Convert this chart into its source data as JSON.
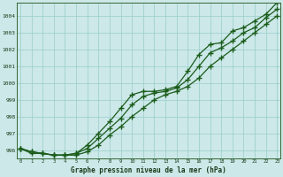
{
  "x": [
    0,
    1,
    2,
    3,
    4,
    5,
    6,
    7,
    8,
    9,
    10,
    11,
    12,
    13,
    14,
    15,
    16,
    17,
    18,
    19,
    20,
    21,
    22,
    23
  ],
  "line1": [
    996.1,
    995.9,
    995.8,
    995.7,
    995.7,
    995.7,
    995.9,
    996.3,
    996.9,
    997.4,
    998.0,
    998.5,
    999.0,
    999.3,
    999.5,
    999.8,
    1000.3,
    1001.0,
    1001.5,
    1002.0,
    1002.5,
    1003.0,
    1003.5,
    1004.0
  ],
  "line2": [
    996.1,
    995.9,
    995.8,
    995.7,
    995.7,
    995.8,
    996.1,
    996.7,
    997.3,
    997.9,
    998.7,
    999.2,
    999.4,
    999.5,
    999.7,
    1000.2,
    1001.0,
    1001.8,
    1002.1,
    1002.5,
    1003.0,
    1003.3,
    1003.9,
    1004.4
  ],
  "line3": [
    996.1,
    995.8,
    995.8,
    995.7,
    995.7,
    995.8,
    996.3,
    997.0,
    997.7,
    998.5,
    999.3,
    999.5,
    999.5,
    999.6,
    999.8,
    1000.7,
    1001.7,
    1002.3,
    1002.4,
    1003.1,
    1003.3,
    1003.7,
    1004.1,
    1004.8
  ],
  "line_color": "#1a5c1a",
  "bg_color": "#cce8e8",
  "grid_color": "#99cccc",
  "xlabel": "Graphe pression niveau de la mer (hPa)",
  "ylim": [
    995.5,
    1004.8
  ],
  "yticks": [
    996,
    997,
    998,
    999,
    1000,
    1001,
    1002,
    1003,
    1004
  ],
  "xticks": [
    0,
    1,
    2,
    3,
    4,
    5,
    6,
    7,
    8,
    9,
    10,
    11,
    12,
    13,
    14,
    15,
    16,
    17,
    18,
    19,
    20,
    21,
    22,
    23
  ],
  "figw": 3.2,
  "figh": 2.0,
  "dpi": 100
}
